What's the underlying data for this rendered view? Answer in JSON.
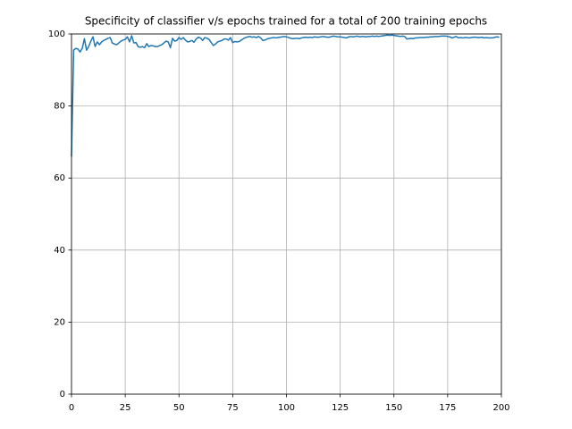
{
  "chart_data": {
    "type": "line",
    "title": "Specificity of classifier v/s epochs trained for a total of 200 training epochs",
    "xlim": [
      0,
      200
    ],
    "xticks": [
      0,
      25,
      50,
      75,
      100,
      125,
      150,
      175,
      200
    ],
    "ylim": [
      0,
      100
    ],
    "yticks": [
      0,
      20,
      40,
      60,
      80,
      100
    ],
    "grid": true,
    "series": [
      {
        "color": "#1f77b4",
        "x": [
          0,
          1,
          2,
          3,
          4,
          5,
          6,
          7,
          8,
          9,
          10,
          11,
          12,
          13,
          14,
          15,
          16,
          17,
          18,
          19,
          20,
          21,
          22,
          23,
          24,
          25,
          26,
          27,
          28,
          29,
          30,
          31,
          32,
          33,
          34,
          35,
          36,
          37,
          38,
          39,
          40,
          41,
          42,
          43,
          44,
          45,
          46,
          47,
          48,
          49,
          50,
          51,
          52,
          53,
          54,
          55,
          56,
          57,
          58,
          59,
          60,
          61,
          62,
          63,
          64,
          65,
          66,
          67,
          68,
          69,
          70,
          71,
          72,
          73,
          74,
          75,
          76,
          77,
          78,
          79,
          80,
          81,
          82,
          83,
          84,
          85,
          86,
          87,
          88,
          89,
          90,
          91,
          92,
          93,
          94,
          95,
          96,
          97,
          98,
          99,
          100,
          101,
          102,
          103,
          104,
          105,
          106,
          107,
          108,
          109,
          110,
          111,
          112,
          113,
          114,
          115,
          116,
          117,
          118,
          119,
          120,
          121,
          122,
          123,
          124,
          125,
          126,
          127,
          128,
          129,
          130,
          131,
          132,
          133,
          134,
          135,
          136,
          137,
          138,
          139,
          140,
          141,
          142,
          143,
          144,
          145,
          146,
          147,
          148,
          149,
          150,
          151,
          152,
          153,
          154,
          155,
          156,
          157,
          158,
          159,
          160,
          161,
          162,
          163,
          164,
          165,
          166,
          167,
          168,
          169,
          170,
          171,
          172,
          173,
          174,
          175,
          176,
          177,
          178,
          179,
          180,
          181,
          182,
          183,
          184,
          185,
          186,
          187,
          188,
          189,
          190,
          191,
          192,
          193,
          194,
          195,
          196,
          197,
          198,
          199
        ],
        "values": [
          66,
          95.5,
          96,
          95.8,
          95,
          96,
          98.7,
          95.5,
          96.5,
          98,
          99.2,
          96.5,
          97.8,
          97,
          97.8,
          98.2,
          98.5,
          98.8,
          99,
          97.5,
          97.2,
          97,
          97.5,
          98,
          98.3,
          98.5,
          99.2,
          97.8,
          99.5,
          97.5,
          97.6,
          96.5,
          96.3,
          96.5,
          96.2,
          97.3,
          96.5,
          96.8,
          96.7,
          96.5,
          96.5,
          96.8,
          97,
          97.5,
          98,
          97.8,
          96.2,
          98.8,
          98,
          98.2,
          99,
          98.5,
          99,
          98.3,
          97.8,
          97.9,
          98.2,
          97.7,
          98.6,
          99.1,
          98.9,
          98.2,
          99,
          98.8,
          98.5,
          97.6,
          96.8,
          97.2,
          97.8,
          98,
          98.2,
          98.6,
          98.6,
          98.3,
          99,
          97.6,
          97.9,
          97.8,
          97.9,
          98.3,
          98.7,
          99,
          99.2,
          99.3,
          99.1,
          99.2,
          99,
          99.3,
          98.9,
          98.2,
          98.3,
          98.6,
          98.8,
          98.9,
          99,
          98.9,
          99,
          99.1,
          99.2,
          99.3,
          99.2,
          99,
          98.8,
          98.7,
          98.8,
          98.8,
          98.7,
          98.9,
          99,
          99.1,
          99,
          99.1,
          99,
          99.2,
          99.1,
          99.1,
          99.2,
          99.3,
          99.2,
          99.1,
          99.1,
          99.3,
          99.4,
          99.3,
          99.2,
          99.2,
          99.1,
          99,
          98.9,
          99.2,
          99.3,
          99.2,
          99.3,
          99.4,
          99.2,
          99.3,
          99.3,
          99.2,
          99.3,
          99.3,
          99.4,
          99.3,
          99.4,
          99.3,
          99.4,
          99.5,
          99.6,
          99.7,
          99.6,
          99.7,
          99.6,
          99.5,
          99.4,
          99.3,
          99.4,
          99.3,
          98.6,
          98.7,
          98.8,
          98.7,
          98.9,
          98.9,
          99,
          99,
          99,
          99.1,
          99.1,
          99.2,
          99.2,
          99.3,
          99.3,
          99.3,
          99.4,
          99.4,
          99.4,
          99.3,
          99.2,
          98.9,
          99.1,
          99.3,
          98.9,
          99,
          98.9,
          99,
          99,
          98.9,
          99,
          99.1,
          99.1,
          99,
          99,
          99.1,
          98.9,
          99,
          98.9,
          98.9,
          98.9,
          99.1,
          99.2,
          99.1
        ]
      }
    ]
  }
}
